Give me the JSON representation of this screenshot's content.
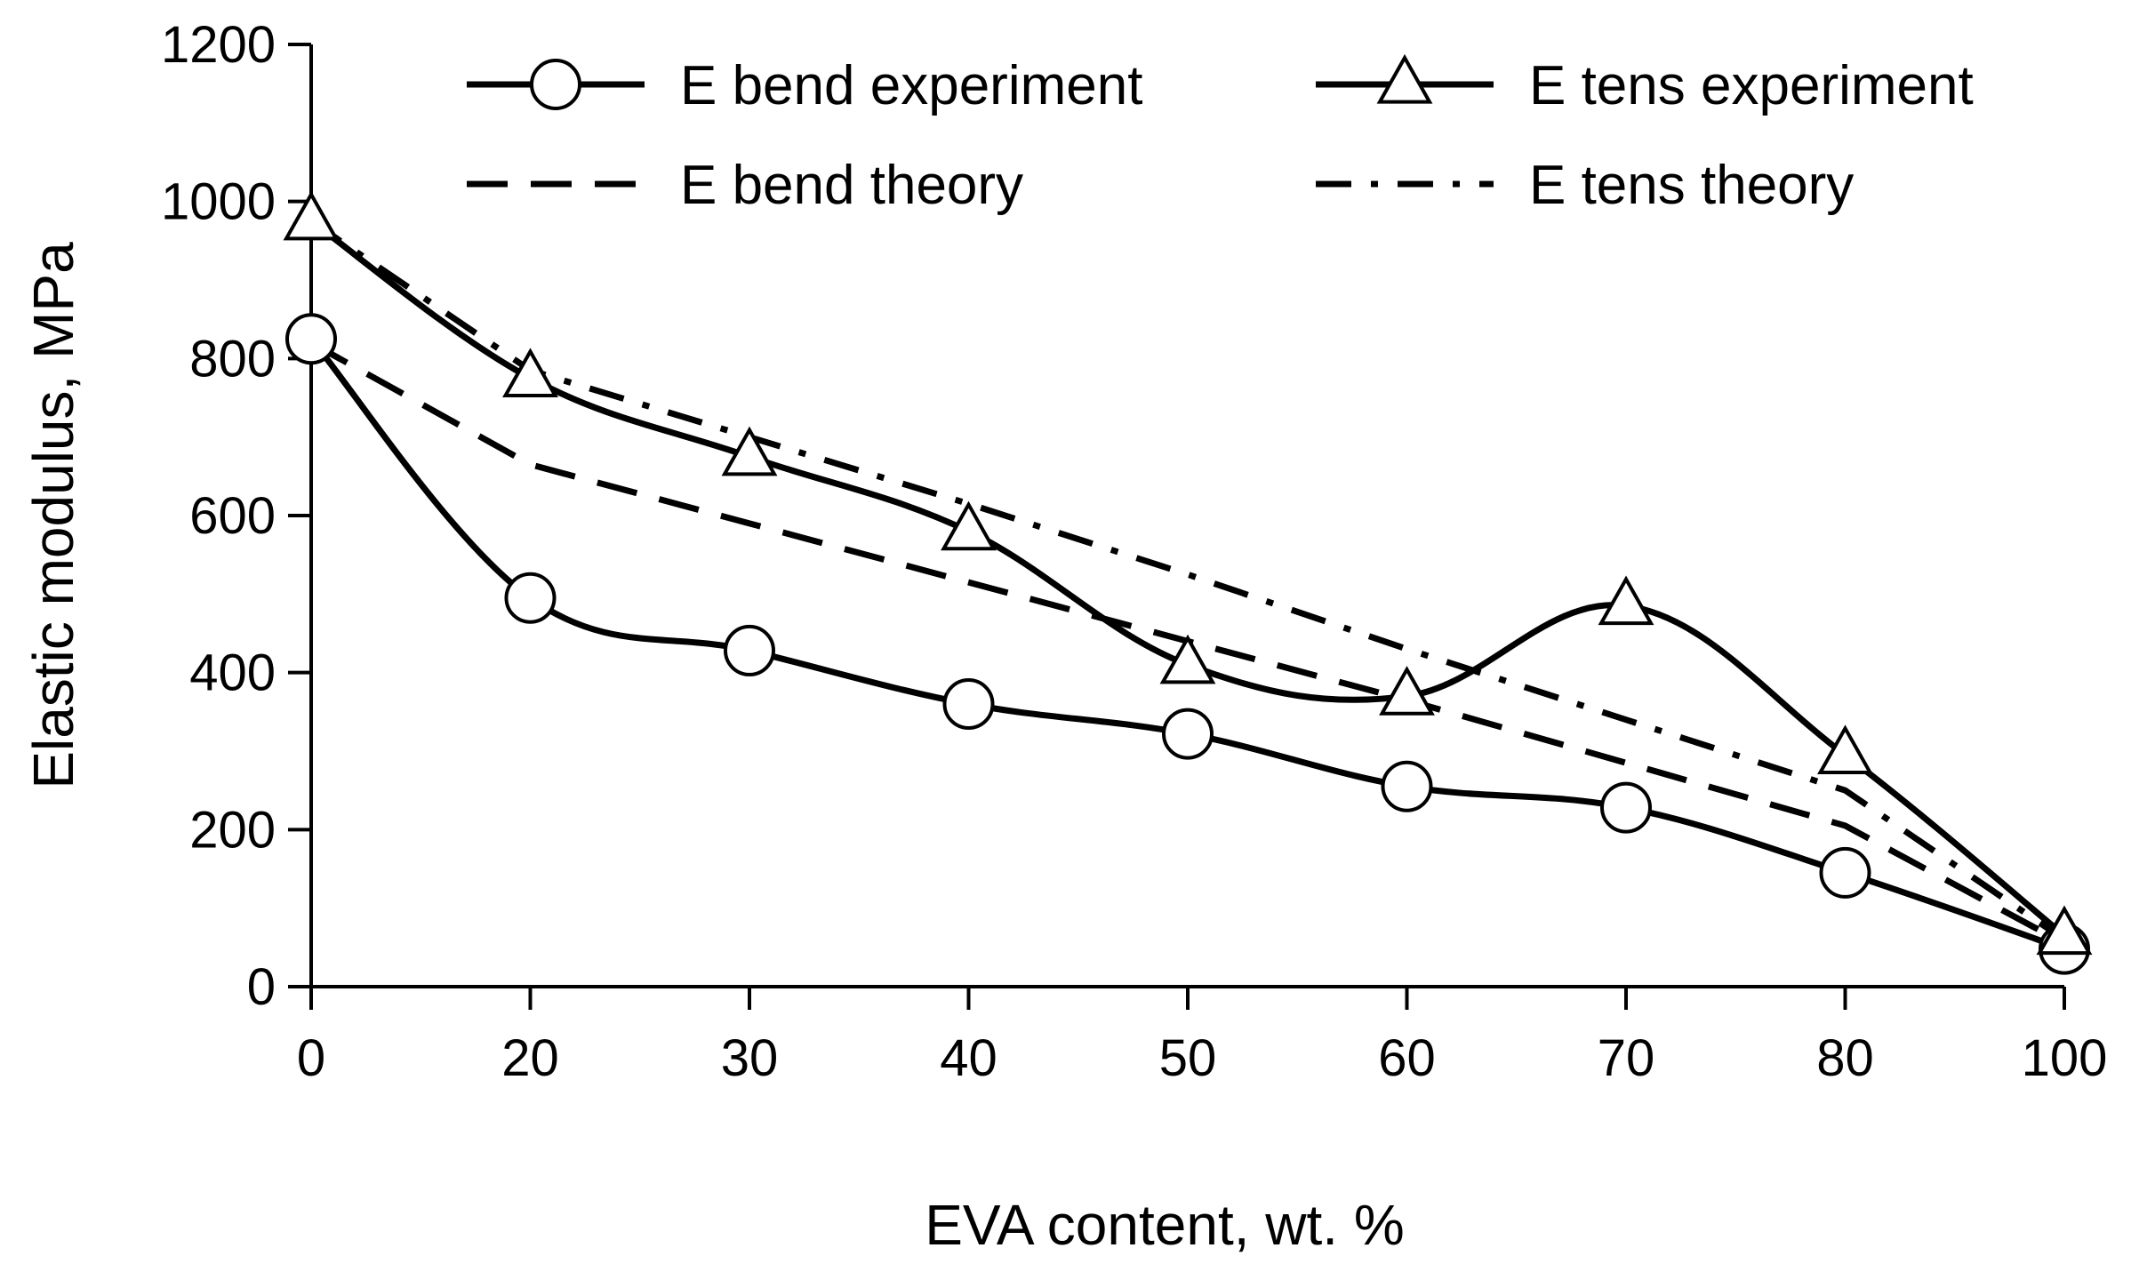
{
  "chart_data": {
    "type": "line",
    "title": "",
    "xlabel": "EVA content, wt. %",
    "ylabel": "Elastic modulus, MPa",
    "categories": [
      "0",
      "20",
      "30",
      "40",
      "50",
      "60",
      "70",
      "80",
      "100"
    ],
    "ylim": [
      0,
      1200
    ],
    "yticks": [
      "0",
      "200",
      "400",
      "600",
      "800",
      "1000",
      "1200"
    ],
    "grid": false,
    "legend_position": "top",
    "series": [
      {
        "name": "E bend experiment",
        "style": "solid",
        "marker": "circle",
        "values": [
          825,
          495,
          428,
          360,
          322,
          255,
          228,
          145,
          48
        ]
      },
      {
        "name": "E tens experiment",
        "style": "solid",
        "marker": "triangle",
        "values": [
          975,
          775,
          675,
          580,
          410,
          370,
          485,
          295,
          65
        ]
      },
      {
        "name": "E bend theory",
        "style": "dashed",
        "marker": "none",
        "values": [
          820,
          665,
          590,
          515,
          440,
          365,
          285,
          205,
          55
        ]
      },
      {
        "name": "E tens theory",
        "style": "dashdot",
        "marker": "none",
        "values": [
          975,
          785,
          700,
          615,
          525,
          430,
          340,
          250,
          60
        ]
      }
    ],
    "colors": {
      "line": "#000000",
      "marker_fill": "#ffffff",
      "background": "#ffffff"
    }
  }
}
